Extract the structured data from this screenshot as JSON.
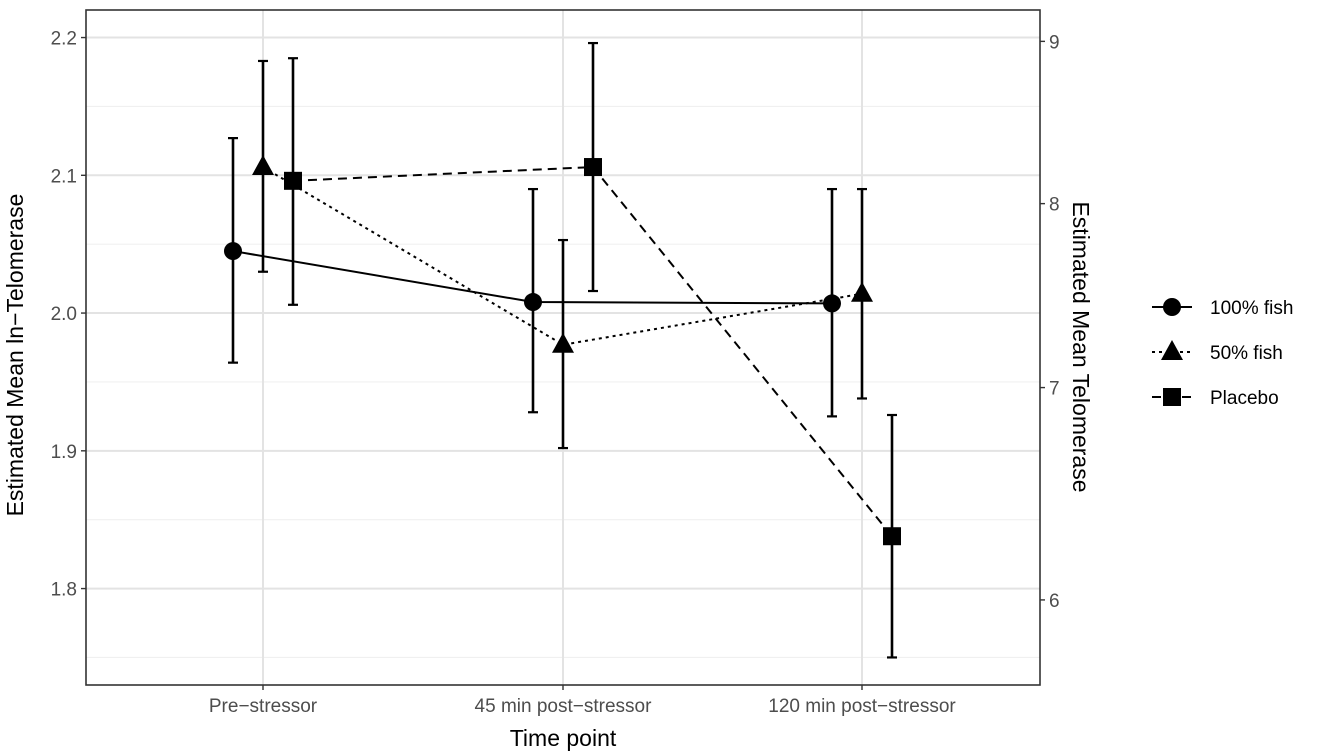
{
  "chart_data": {
    "type": "line",
    "xlabel": "Time point",
    "ylabel": "Estimated Mean ln−Telomerase",
    "y2label": "Estimated Mean Telomerase",
    "categories": [
      "Pre−stressor",
      "45 min post−stressor",
      "120 min post−stressor"
    ],
    "ylim": [
      1.73,
      2.22
    ],
    "yticks": [
      1.8,
      1.9,
      2.0,
      2.1,
      2.2
    ],
    "ytick_labels": [
      "1.8",
      "1.9",
      "2.0",
      "2.1",
      "2.2"
    ],
    "y2ticks": [
      6,
      7,
      8,
      9
    ],
    "y2tick_labels": [
      "6",
      "7",
      "8",
      "9"
    ],
    "grid": true,
    "legend_position": "right",
    "series": [
      {
        "name": "100% fish",
        "marker": "circle",
        "dash": "solid",
        "values": [
          2.045,
          2.008,
          2.007
        ],
        "lower": [
          1.964,
          1.928,
          1.925
        ],
        "upper": [
          2.127,
          2.09,
          2.09
        ]
      },
      {
        "name": "50% fish",
        "marker": "triangle",
        "dash": "dotted",
        "values": [
          2.106,
          1.977,
          2.014
        ],
        "lower": [
          2.03,
          1.902,
          1.938
        ],
        "upper": [
          2.183,
          2.053,
          2.09
        ]
      },
      {
        "name": "Placebo",
        "marker": "square",
        "dash": "dashed",
        "values": [
          2.096,
          2.106,
          1.838
        ],
        "lower": [
          2.006,
          2.016,
          1.75
        ],
        "upper": [
          2.185,
          2.196,
          1.926
        ]
      }
    ]
  }
}
